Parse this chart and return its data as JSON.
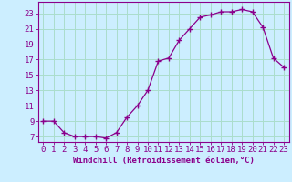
{
  "x": [
    0,
    1,
    2,
    3,
    4,
    5,
    6,
    7,
    8,
    9,
    10,
    11,
    12,
    13,
    14,
    15,
    16,
    17,
    18,
    19,
    20,
    21,
    22,
    23
  ],
  "y": [
    9,
    9,
    7.5,
    7,
    7,
    7,
    6.8,
    7.5,
    9.5,
    11,
    13,
    16.8,
    17.2,
    19.5,
    21,
    22.5,
    22.8,
    23.2,
    23.2,
    23.5,
    23.2,
    21.2,
    17.2,
    16
  ],
  "line_color": "#8b008b",
  "marker": "+",
  "marker_size": 4,
  "bg_color": "#cceeff",
  "grid_color": "#aaddcc",
  "xlabel": "Windchill (Refroidissement éolien,°C)",
  "xlabel_color": "#8b008b",
  "xlabel_fontsize": 6.5,
  "xtick_labels": [
    "0",
    "1",
    "2",
    "3",
    "4",
    "5",
    "6",
    "7",
    "8",
    "9",
    "10",
    "11",
    "12",
    "13",
    "14",
    "15",
    "16",
    "17",
    "18",
    "19",
    "20",
    "21",
    "22",
    "23"
  ],
  "ytick_values": [
    7,
    9,
    11,
    13,
    15,
    17,
    19,
    21,
    23
  ],
  "ylim": [
    6.3,
    24.5
  ],
  "xlim": [
    -0.5,
    23.5
  ],
  "tick_color": "#8b008b",
  "tick_fontsize": 6.5,
  "border_color": "#8b008b"
}
